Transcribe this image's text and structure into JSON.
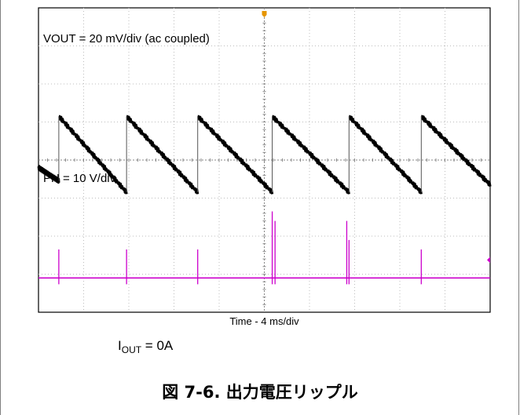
{
  "chart_data": {
    "type": "line",
    "subtype": "oscilloscope-capture",
    "grid": true,
    "divisions": {
      "x": 10,
      "y": 8
    },
    "xlabel": "Time - 4 ms/div",
    "x_unit": "ms",
    "xlim": [
      0,
      40
    ],
    "series": [
      {
        "name": "VOUT = 20 mV/div (ac coupled)",
        "color": "#000000",
        "unit": "div",
        "ylim": [
          -2,
          2
        ],
        "segments": [
          {
            "x": [
              0.0,
              1.8
            ],
            "y": [
              -0.2,
              -0.55
            ]
          },
          {
            "x": [
              1.8,
              7.8
            ],
            "y": [
              1.15,
              -0.85
            ]
          },
          {
            "x": [
              7.8,
              14.1
            ],
            "y": [
              1.15,
              -0.85
            ]
          },
          {
            "x": [
              14.1,
              20.7
            ],
            "y": [
              1.15,
              -0.85
            ]
          },
          {
            "x": [
              20.7,
              27.5
            ],
            "y": [
              1.15,
              -0.85
            ]
          },
          {
            "x": [
              27.5,
              33.9
            ],
            "y": [
              1.15,
              -0.85
            ]
          },
          {
            "x": [
              33.9,
              40.0
            ],
            "y": [
              1.15,
              -0.65
            ]
          }
        ]
      },
      {
        "name": "PH = 10 V/div",
        "color": "#cc00cc",
        "unit": "div",
        "baseline_div": -3.1,
        "spikes": [
          {
            "x": 1.8,
            "peak_div": 2.35
          },
          {
            "x": 7.8,
            "peak_div": 2.35
          },
          {
            "x": 14.1,
            "peak_div": 2.35
          },
          {
            "x": 20.7,
            "peak_div": 1.35
          },
          {
            "x": 20.95,
            "peak_div": 1.6
          },
          {
            "x": 27.3,
            "peak_div": 1.6
          },
          {
            "x": 27.5,
            "peak_div": 2.1
          },
          {
            "x": 33.9,
            "peak_div": 2.35
          }
        ]
      }
    ]
  },
  "condition": {
    "prefix": "I",
    "sub": "OUT",
    "suffix": " = 0A"
  },
  "caption": "図 7-6. 出力電圧リップル",
  "colors": {
    "grid": "#bcbcbc",
    "trigger": "#e69500",
    "ch1": "#000000",
    "ch2": "#cc00cc"
  }
}
